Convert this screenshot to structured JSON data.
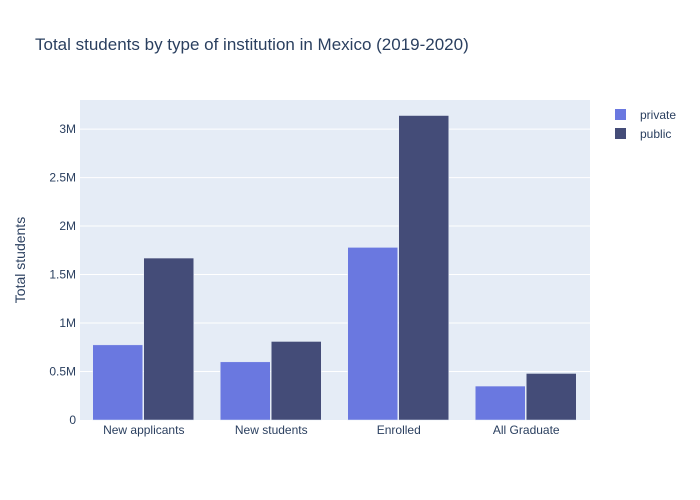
{
  "chart_data": {
    "type": "bar",
    "title": "Total students by type of institution in Mexico (2019-2020)",
    "xlabel": "",
    "ylabel": "Total students",
    "categories": [
      "New applicants",
      "New students",
      "Enrolled",
      "All Graduate"
    ],
    "series": [
      {
        "name": "private",
        "color": "#6a78e0",
        "values": [
          775000,
          600000,
          1780000,
          350000
        ]
      },
      {
        "name": "public",
        "color": "#444c78",
        "values": [
          1670000,
          810000,
          3140000,
          480000
        ]
      }
    ],
    "ylim": [
      0,
      3300000
    ],
    "yticks": [
      0,
      500000,
      1000000,
      1500000,
      2000000,
      2500000,
      3000000
    ],
    "ytick_labels": [
      "0",
      "0.5M",
      "1M",
      "1.5M",
      "2M",
      "2.5M",
      "3M"
    ],
    "grid": true,
    "legend": "top-right",
    "plot_bg": "#e5ecf6"
  }
}
